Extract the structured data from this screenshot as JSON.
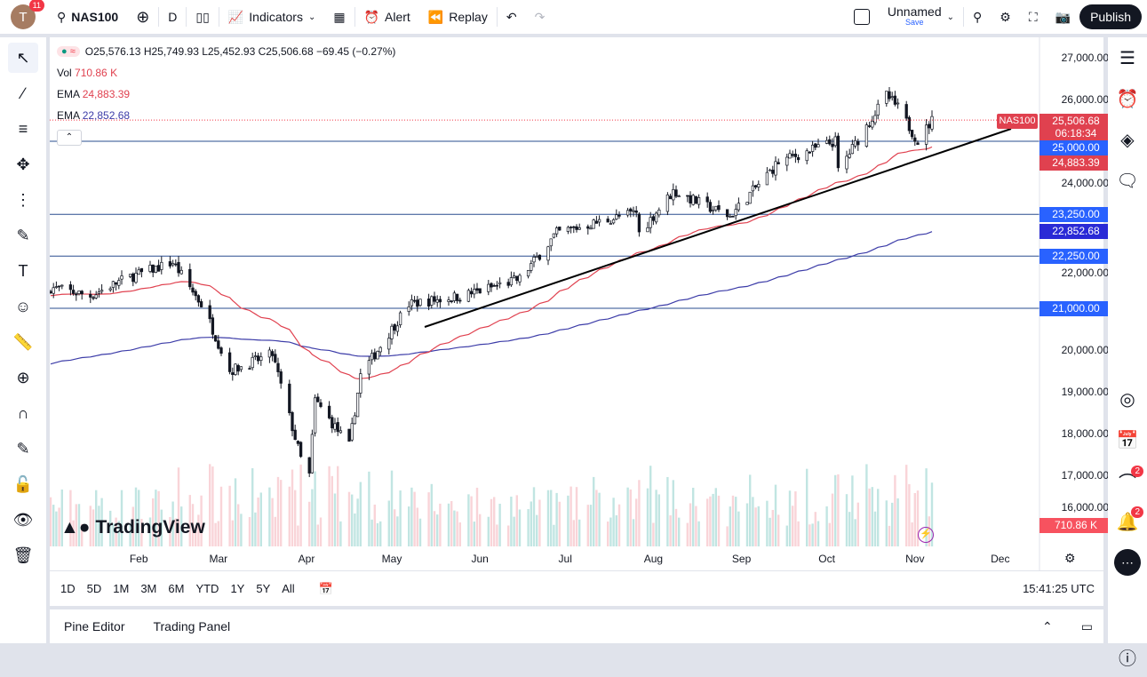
{
  "toolbar": {
    "avatar_letter": "T",
    "avatar_badge": "11",
    "symbol": "NAS100",
    "interval": "D",
    "indicators": "Indicators",
    "alert": "Alert",
    "replay": "Replay",
    "layout_name": "Unnamed",
    "layout_sub": "Save",
    "publish": "Publish"
  },
  "legend": {
    "ohlc": "O25,576.13 H25,749.93 L25,452.93 C25,506.68 −69.45 (−0.27%)",
    "vol_label": "Vol",
    "vol_value": "710.86 K",
    "ema1_label": "EMA",
    "ema1_value": "24,883.39",
    "ema2_label": "EMA",
    "ema2_value": "22,852.68"
  },
  "price_axis": [
    "27,000.00",
    "26,000.00",
    "24,000.00",
    "22,000.00",
    "20,000.00",
    "19,000.00",
    "18,000.00",
    "17,000.00",
    "16,000.00"
  ],
  "price_labels": {
    "symbol_tag": "NAS100",
    "last": "25,506.68",
    "countdown": "06:18:34",
    "lvl1": "25,000.00",
    "ema1": "24,883.39",
    "lvl2": "23,250.00",
    "ema2": "22,852.68",
    "lvl3": "22,250.00",
    "lvl4": "21,000.00",
    "vol": "710.86 K"
  },
  "time_axis": [
    "Feb",
    "Mar",
    "Apr",
    "May",
    "Jun",
    "Jul",
    "Aug",
    "Sep",
    "Oct",
    "Nov",
    "Dec"
  ],
  "timeframes": [
    "1D",
    "5D",
    "1M",
    "3M",
    "6M",
    "YTD",
    "1Y",
    "5Y",
    "All"
  ],
  "clock": "15:41:25 UTC",
  "bottom_tabs": [
    "Pine Editor",
    "Trading Panel"
  ],
  "logo": "TradingView",
  "right_badges": {
    "signals": "2",
    "notifications": "2"
  },
  "colors": {
    "up": "#089981",
    "down": "#f23645",
    "ema_fast": "#e0414f",
    "ema_slow": "#3c3ca8",
    "hline": "#2a4d8f"
  },
  "horizontal_levels": [
    25000,
    23250,
    22250,
    21000
  ],
  "price_path": [
    [
      "2025-01-06",
      21500
    ],
    [
      "2025-01-20",
      21300
    ],
    [
      "2025-02-01",
      21700
    ],
    [
      "2025-02-18",
      22100
    ],
    [
      "2025-03-01",
      21000
    ],
    [
      "2025-03-10",
      19500
    ],
    [
      "2025-03-25",
      19900
    ],
    [
      "2025-04-04",
      17400
    ],
    [
      "2025-04-07",
      17000
    ],
    [
      "2025-04-09",
      18800
    ],
    [
      "2025-04-21",
      17700
    ],
    [
      "2025-04-25",
      19400
    ],
    [
      "2025-05-12",
      21100
    ],
    [
      "2025-05-31",
      21300
    ],
    [
      "2025-06-20",
      21700
    ],
    [
      "2025-07-03",
      22800
    ],
    [
      "2025-07-31",
      23300
    ],
    [
      "2025-08-01",
      22800
    ],
    [
      "2025-08-13",
      23800
    ],
    [
      "2025-09-02",
      23200
    ],
    [
      "2025-09-19",
      24500
    ],
    [
      "2025-10-09",
      25000
    ],
    [
      "2025-10-10",
      24300
    ],
    [
      "2025-10-27",
      26100
    ],
    [
      "2025-10-31",
      25800
    ],
    [
      "2025-11-07",
      25000
    ],
    [
      "2025-11-12",
      25500
    ]
  ]
}
